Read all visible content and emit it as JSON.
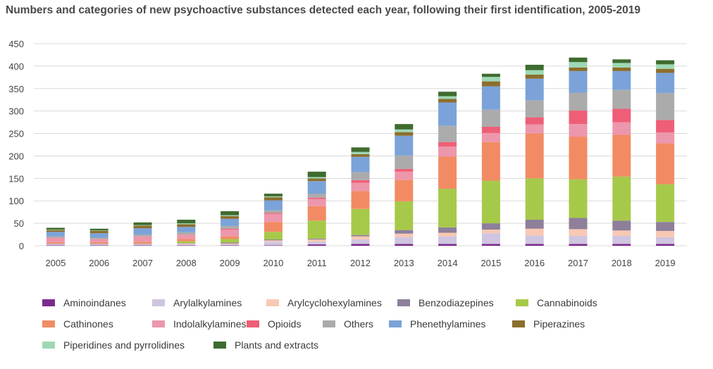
{
  "chart_data": {
    "type": "bar",
    "stacked": true,
    "title": "Numbers and categories of new psychoactive substances detected each year, following their first identification, 2005-2019",
    "xlabel": "",
    "ylabel": "",
    "ylim": [
      0,
      450
    ],
    "yticks": [
      "0",
      "50",
      "100",
      "150",
      "200",
      "250",
      "300",
      "350",
      "400",
      "450"
    ],
    "grid": true,
    "legend_position": "bottom",
    "categories": [
      "2005",
      "2006",
      "2007",
      "2008",
      "2009",
      "2010",
      "2011",
      "2012",
      "2013",
      "2014",
      "2015",
      "2016",
      "2017",
      "2018",
      "2019"
    ],
    "series": [
      {
        "name": "Aminoindanes",
        "color": "#7b2a8c",
        "values": [
          1,
          1,
          1,
          1,
          1,
          1,
          3,
          4,
          4,
          4,
          4,
          4,
          4,
          4,
          4
        ]
      },
      {
        "name": "Arylalkylamines",
        "color": "#cfc5e0",
        "values": [
          2,
          2,
          2,
          2,
          2,
          8,
          6,
          10,
          15,
          17,
          24,
          19,
          18,
          18,
          15
        ]
      },
      {
        "name": "Arylcyclohexylamines",
        "color": "#f8c8b4",
        "values": [
          1,
          1,
          1,
          2,
          2,
          3,
          5,
          7,
          8,
          8,
          8,
          15,
          15,
          12,
          14
        ]
      },
      {
        "name": "Benzodiazepines",
        "color": "#8e7f9a",
        "values": [
          1,
          1,
          1,
          1,
          2,
          2,
          2,
          3,
          8,
          12,
          14,
          20,
          25,
          22,
          20
        ]
      },
      {
        "name": "Cannabinoids",
        "color": "#a7c94a",
        "values": [
          0,
          0,
          0,
          4,
          8,
          17,
          40,
          58,
          64,
          86,
          95,
          92,
          86,
          98,
          84
        ]
      },
      {
        "name": "Cathinones",
        "color": "#f28b64",
        "values": [
          3,
          3,
          4,
          5,
          6,
          22,
          32,
          40,
          48,
          72,
          86,
          100,
          95,
          93,
          91
        ]
      },
      {
        "name": "Indolalkylamines",
        "color": "#ec97ac",
        "values": [
          10,
          7,
          12,
          10,
          15,
          18,
          16,
          18,
          18,
          22,
          20,
          20,
          28,
          28,
          24
        ]
      },
      {
        "name": "Opioids",
        "color": "#ee5f77",
        "values": [
          0,
          0,
          0,
          0,
          2,
          2,
          3,
          6,
          6,
          10,
          14,
          16,
          30,
          30,
          28
        ]
      },
      {
        "name": "Others",
        "color": "#ababab",
        "values": [
          3,
          3,
          4,
          5,
          6,
          6,
          9,
          18,
          30,
          36,
          38,
          38,
          40,
          42,
          60
        ]
      },
      {
        "name": "Phenethylamines",
        "color": "#7ba3d9",
        "values": [
          10,
          10,
          14,
          12,
          16,
          22,
          28,
          34,
          44,
          52,
          52,
          48,
          48,
          42,
          45
        ]
      },
      {
        "name": "Piperazines",
        "color": "#8c6e2d",
        "values": [
          4,
          5,
          6,
          6,
          6,
          7,
          6,
          6,
          8,
          8,
          11,
          9,
          8,
          8,
          9
        ]
      },
      {
        "name": "Piperidines and pyrrolidines",
        "color": "#9ed8b4",
        "values": [
          1,
          1,
          1,
          2,
          2,
          2,
          3,
          5,
          6,
          6,
          10,
          10,
          12,
          10,
          10
        ]
      },
      {
        "name": "Plants and extracts",
        "color": "#3f6b2f",
        "values": [
          4,
          4,
          6,
          8,
          9,
          6,
          12,
          10,
          12,
          10,
          7,
          12,
          10,
          8,
          9
        ]
      }
    ]
  }
}
